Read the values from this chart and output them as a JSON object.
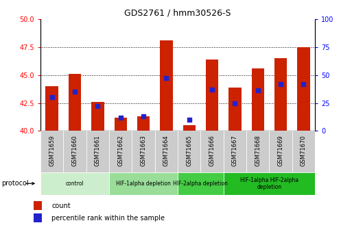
{
  "title": "GDS2761 / hmm30526-S",
  "samples": [
    "GSM71659",
    "GSM71660",
    "GSM71661",
    "GSM71662",
    "GSM71663",
    "GSM71664",
    "GSM71665",
    "GSM71666",
    "GSM71667",
    "GSM71668",
    "GSM71669",
    "GSM71670"
  ],
  "count_values": [
    44.0,
    45.1,
    42.6,
    41.2,
    41.3,
    48.1,
    40.5,
    46.4,
    43.9,
    45.6,
    46.5,
    47.5
  ],
  "percentile_values": [
    30,
    35,
    22,
    12,
    13,
    47,
    10,
    37,
    25,
    36,
    42,
    42
  ],
  "ylim_left": [
    40,
    50
  ],
  "ylim_right": [
    0,
    100
  ],
  "yticks_left": [
    40,
    42.5,
    45,
    47.5,
    50
  ],
  "yticks_right": [
    0,
    25,
    50,
    75,
    100
  ],
  "grid_values": [
    42.5,
    45.0,
    47.5
  ],
  "bar_color": "#cc2200",
  "dot_color": "#2222cc",
  "bar_bottom": 40,
  "proto_defs": [
    [
      0,
      2,
      "#cceecc",
      "control"
    ],
    [
      3,
      5,
      "#99dd99",
      "HIF-1alpha depletion"
    ],
    [
      6,
      7,
      "#44cc44",
      "HIF-2alpha depletion"
    ],
    [
      8,
      11,
      "#22bb22",
      "HIF-1alpha HIF-2alpha\ndepletion"
    ]
  ],
  "legend_labels": [
    "count",
    "percentile rank within the sample"
  ],
  "xlabel_bg": "#cccccc"
}
